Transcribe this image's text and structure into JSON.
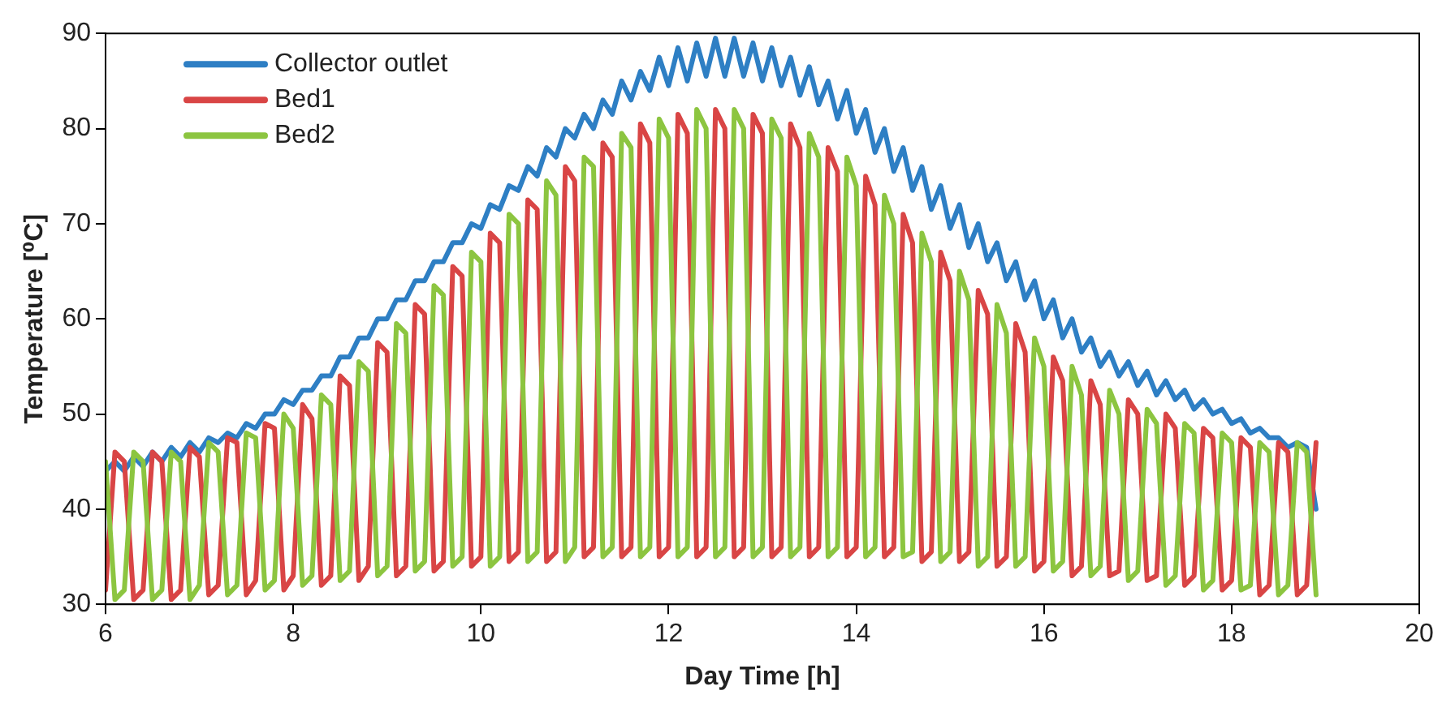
{
  "chart_data": {
    "type": "line",
    "xlabel": "Day Time [h]",
    "ylabel": "Temperature [⁰C]",
    "x": [
      6.0,
      6.1,
      6.2,
      6.3,
      6.4,
      6.5,
      6.6,
      6.7,
      6.8,
      6.9,
      7.0,
      7.1,
      7.2,
      7.3,
      7.4,
      7.5,
      7.6,
      7.7,
      7.8,
      7.9,
      8.0,
      8.1,
      8.2,
      8.3,
      8.4,
      8.5,
      8.6,
      8.7,
      8.8,
      8.9,
      9.0,
      9.1,
      9.2,
      9.3,
      9.4,
      9.5,
      9.6,
      9.7,
      9.8,
      9.9,
      10.0,
      10.1,
      10.2,
      10.3,
      10.4,
      10.5,
      10.6,
      10.7,
      10.8,
      10.9,
      11.0,
      11.1,
      11.2,
      11.3,
      11.4,
      11.5,
      11.6,
      11.7,
      11.8,
      11.9,
      12.0,
      12.1,
      12.2,
      12.3,
      12.4,
      12.5,
      12.6,
      12.7,
      12.8,
      12.9,
      13.0,
      13.1,
      13.2,
      13.3,
      13.4,
      13.5,
      13.6,
      13.7,
      13.8,
      13.9,
      14.0,
      14.1,
      14.2,
      14.3,
      14.4,
      14.5,
      14.6,
      14.7,
      14.8,
      14.9,
      15.0,
      15.1,
      15.2,
      15.3,
      15.4,
      15.5,
      15.6,
      15.7,
      15.8,
      15.9,
      16.0,
      16.1,
      16.2,
      16.3,
      16.4,
      16.5,
      16.6,
      16.7,
      16.8,
      16.9,
      17.0,
      17.1,
      17.2,
      17.3,
      17.4,
      17.5,
      17.6,
      17.7,
      17.8,
      17.9,
      18.0,
      18.1,
      18.2,
      18.3,
      18.4,
      18.5,
      18.6,
      18.7,
      18.8,
      18.9
    ],
    "series": [
      {
        "name": "Collector outlet",
        "color": "#2e7fc4",
        "values": [
          44,
          45,
          44,
          45.5,
          44.5,
          46,
          45,
          46.5,
          45.5,
          47,
          46,
          47.5,
          47,
          48,
          47.5,
          49,
          48.5,
          50,
          50,
          51.5,
          51,
          52.5,
          52.5,
          54,
          54,
          56,
          56,
          58,
          58,
          60,
          60,
          62,
          62,
          64,
          64,
          66,
          66,
          68,
          68,
          70,
          69.5,
          72,
          71.5,
          74,
          73.5,
          76,
          75,
          78,
          77,
          80,
          79,
          81.5,
          80,
          83,
          81.5,
          85,
          83,
          86,
          84,
          87.5,
          84.5,
          88.5,
          85,
          89,
          85.5,
          89.5,
          85.5,
          89.5,
          85.5,
          89,
          85,
          88.5,
          84.5,
          87.5,
          83.5,
          86.5,
          82.5,
          85,
          81,
          84,
          79.5,
          82,
          77.5,
          80,
          75.5,
          78,
          73.5,
          76,
          71.5,
          74,
          69.5,
          72,
          67.5,
          70,
          66,
          68,
          64,
          66,
          62,
          64,
          60,
          62,
          58,
          60,
          56.5,
          58,
          55,
          56.5,
          54,
          55.5,
          53,
          54.5,
          52,
          53.5,
          51.5,
          52.5,
          50.5,
          51.5,
          50,
          50.5,
          49,
          49.5,
          48,
          48.5,
          47.5,
          47.5,
          46.5,
          47,
          46.5,
          40
        ]
      },
      {
        "name": "Bed1",
        "color": "#d94545",
        "values": [
          31.5,
          46,
          45,
          30.5,
          31.5,
          46,
          45,
          30.5,
          31.5,
          46.5,
          45.5,
          31,
          32,
          47.5,
          47,
          31,
          32.5,
          49,
          48.5,
          31.5,
          33,
          51,
          49.5,
          32,
          33,
          54,
          53,
          32.5,
          34,
          57.5,
          56.5,
          33,
          34,
          61.5,
          60.5,
          33.5,
          34.5,
          65.5,
          64.5,
          34,
          35,
          69,
          68,
          34.5,
          35.5,
          72.5,
          71.5,
          34.5,
          35.5,
          76,
          74.5,
          35,
          36,
          78.5,
          77,
          35,
          36,
          80.5,
          78.5,
          35,
          36,
          81.5,
          79.5,
          35,
          36,
          82,
          80,
          35,
          36,
          81.5,
          79.5,
          35,
          36,
          80.5,
          78,
          35,
          36,
          78,
          75.5,
          35,
          36,
          75,
          72,
          35,
          36,
          71,
          68,
          34.5,
          35.5,
          67,
          64,
          34.5,
          35.5,
          63,
          60.5,
          34,
          35,
          59.5,
          56.5,
          33.5,
          34.5,
          56,
          53.5,
          33,
          34,
          53.5,
          51,
          33,
          33.5,
          51.5,
          50,
          32.5,
          33,
          50,
          48.5,
          32,
          33,
          48.5,
          47.5,
          31.5,
          32.5,
          47.5,
          46.5,
          31,
          32,
          47,
          46,
          31,
          32,
          47
        ]
      },
      {
        "name": "Bed2",
        "color": "#8cc540",
        "values": [
          45,
          30.5,
          31.5,
          46,
          45,
          30.5,
          31.5,
          46,
          45,
          30.5,
          32,
          47,
          46,
          31,
          32,
          48,
          47.5,
          31.5,
          32.5,
          50,
          48.5,
          32,
          33,
          52,
          51,
          32.5,
          33.5,
          55.5,
          54.5,
          33,
          34,
          59.5,
          58.5,
          33.5,
          34.5,
          63.5,
          62.5,
          34,
          35,
          67,
          66,
          34,
          35,
          71,
          70,
          34.5,
          35.5,
          74.5,
          73,
          34.5,
          36,
          77,
          76,
          35,
          36,
          79.5,
          78,
          35,
          36,
          81,
          79,
          35,
          36,
          82,
          80,
          35,
          36,
          82,
          80,
          35,
          36,
          81,
          79,
          35,
          36,
          79.5,
          77,
          35,
          36,
          77,
          74,
          35,
          36,
          73,
          70,
          35,
          35.5,
          69,
          66,
          34.5,
          35.5,
          65,
          62,
          34,
          35,
          61.5,
          58.5,
          34,
          35,
          58,
          55,
          33.5,
          34.5,
          55,
          52,
          33,
          34,
          52.5,
          50,
          32.5,
          33.5,
          50.5,
          49,
          32,
          33,
          49,
          48,
          31.5,
          32.5,
          48,
          47,
          31.5,
          32,
          47,
          46,
          31,
          32,
          47,
          46,
          31
        ]
      }
    ],
    "xlim": [
      6,
      20
    ],
    "xticks": [
      6,
      8,
      10,
      12,
      14,
      16,
      18,
      20
    ],
    "ylim": [
      30,
      90
    ],
    "yticks": [
      30,
      40,
      50,
      60,
      70,
      80,
      90
    ],
    "grid": false,
    "legend": "top left",
    "marker": "none",
    "line_style": "solid"
  }
}
